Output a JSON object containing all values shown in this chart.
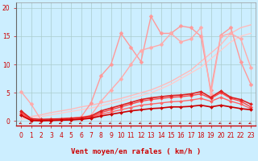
{
  "xlabel": "Vent moyen/en rafales ( km/h )",
  "xlim": [
    -0.5,
    23.5
  ],
  "ylim": [
    -0.8,
    21
  ],
  "yticks": [
    0,
    5,
    10,
    15,
    20
  ],
  "xticks": [
    0,
    1,
    2,
    3,
    4,
    5,
    6,
    7,
    8,
    9,
    10,
    11,
    12,
    13,
    14,
    15,
    16,
    17,
    18,
    19,
    20,
    21,
    22,
    23
  ],
  "background_color": "#cceeff",
  "grid_color": "#aacccc",
  "series": [
    {
      "x": [
        0,
        1,
        2,
        3,
        4,
        5,
        6,
        7,
        8,
        9,
        10,
        11,
        12,
        13,
        14,
        15,
        16,
        17,
        18,
        19,
        20,
        21,
        22,
        23
      ],
      "y": [
        0.5,
        0.8,
        1.1,
        1.5,
        1.8,
        2.1,
        2.5,
        2.8,
        3.2,
        3.6,
        4.0,
        4.5,
        5.0,
        5.5,
        6.2,
        7.0,
        8.0,
        9.0,
        10.5,
        12.0,
        13.5,
        15.5,
        16.5,
        17.0
      ],
      "color": "#ffbbbb",
      "linewidth": 1.0,
      "marker": null,
      "markersize": 0,
      "zorder": 2
    },
    {
      "x": [
        0,
        1,
        2,
        3,
        4,
        5,
        6,
        7,
        8,
        9,
        10,
        11,
        12,
        13,
        14,
        15,
        16,
        17,
        18,
        19,
        20,
        21,
        22,
        23
      ],
      "y": [
        0.3,
        0.5,
        0.8,
        1.1,
        1.4,
        1.7,
        2.0,
        2.3,
        2.7,
        3.1,
        3.5,
        4.0,
        4.5,
        5.0,
        5.7,
        6.5,
        7.5,
        8.5,
        9.5,
        11.0,
        12.5,
        14.0,
        15.0,
        15.5
      ],
      "color": "#ffcccc",
      "linewidth": 1.0,
      "marker": null,
      "markersize": 0,
      "zorder": 2
    },
    {
      "x": [
        0,
        1,
        2,
        3,
        4,
        5,
        6,
        7,
        8,
        9,
        10,
        11,
        12,
        13,
        14,
        15,
        16,
        17,
        18,
        19,
        20,
        21,
        22,
        23
      ],
      "y": [
        1.2,
        0.3,
        0.2,
        0.3,
        0.4,
        0.5,
        0.7,
        3.2,
        8.0,
        10.0,
        15.5,
        13.0,
        10.5,
        18.5,
        15.5,
        15.5,
        16.8,
        16.5,
        15.0,
        5.5,
        15.2,
        16.5,
        10.5,
        6.5
      ],
      "color": "#ff9999",
      "linewidth": 1.0,
      "marker": "D",
      "markersize": 2.5,
      "zorder": 3
    },
    {
      "x": [
        0,
        1,
        2,
        3,
        4,
        5,
        6,
        7,
        8,
        9,
        10,
        11,
        12,
        13,
        14,
        15,
        16,
        17,
        18,
        19,
        20,
        21,
        22,
        23
      ],
      "y": [
        5.2,
        3.0,
        0.2,
        0.3,
        0.4,
        0.5,
        0.7,
        1.0,
        3.5,
        5.5,
        7.5,
        10.0,
        12.5,
        13.0,
        13.5,
        15.5,
        14.0,
        14.5,
        16.5,
        4.8,
        15.0,
        15.5,
        14.5,
        9.5
      ],
      "color": "#ffaaaa",
      "linewidth": 1.0,
      "marker": "D",
      "markersize": 2.5,
      "zorder": 3
    },
    {
      "x": [
        0,
        1,
        2,
        3,
        4,
        5,
        6,
        7,
        8,
        9,
        10,
        11,
        12,
        13,
        14,
        15,
        16,
        17,
        18,
        19,
        20,
        21,
        22,
        23
      ],
      "y": [
        1.0,
        0.1,
        0.05,
        0.1,
        0.15,
        0.2,
        0.3,
        0.5,
        0.9,
        1.2,
        1.5,
        1.8,
        2.0,
        2.2,
        2.3,
        2.5,
        2.5,
        2.6,
        2.8,
        2.5,
        2.8,
        2.5,
        2.2,
        2.0
      ],
      "color": "#cc0000",
      "linewidth": 1.2,
      "marker": "D",
      "markersize": 2.0,
      "zorder": 6
    },
    {
      "x": [
        0,
        1,
        2,
        3,
        4,
        5,
        6,
        7,
        8,
        9,
        10,
        11,
        12,
        13,
        14,
        15,
        16,
        17,
        18,
        19,
        20,
        21,
        22,
        23
      ],
      "y": [
        1.5,
        0.2,
        0.1,
        0.15,
        0.2,
        0.3,
        0.4,
        0.7,
        1.5,
        2.0,
        2.5,
        3.0,
        3.5,
        3.8,
        4.0,
        4.2,
        4.3,
        4.5,
        4.8,
        4.0,
        5.0,
        4.0,
        3.5,
        2.5
      ],
      "color": "#ff4444",
      "linewidth": 1.0,
      "marker": "D",
      "markersize": 2.0,
      "zorder": 5
    },
    {
      "x": [
        0,
        1,
        2,
        3,
        4,
        5,
        6,
        7,
        8,
        9,
        10,
        11,
        12,
        13,
        14,
        15,
        16,
        17,
        18,
        19,
        20,
        21,
        22,
        23
      ],
      "y": [
        1.2,
        0.15,
        0.08,
        0.12,
        0.18,
        0.25,
        0.35,
        0.6,
        1.2,
        1.6,
        2.0,
        2.4,
        2.8,
        3.0,
        3.2,
        3.4,
        3.5,
        3.7,
        4.0,
        3.5,
        4.2,
        3.5,
        3.0,
        2.2
      ],
      "color": "#ff6666",
      "linewidth": 1.0,
      "marker": "D",
      "markersize": 2.0,
      "zorder": 4
    },
    {
      "x": [
        0,
        1,
        2,
        3,
        4,
        5,
        6,
        7,
        8,
        9,
        10,
        11,
        12,
        13,
        14,
        15,
        16,
        17,
        18,
        19,
        20,
        21,
        22,
        23
      ],
      "y": [
        1.8,
        0.4,
        0.3,
        0.35,
        0.4,
        0.5,
        0.6,
        0.9,
        1.8,
        2.3,
        2.8,
        3.3,
        3.8,
        4.1,
        4.3,
        4.5,
        4.6,
        4.8,
        5.2,
        4.2,
        5.3,
        4.2,
        3.8,
        3.0
      ],
      "color": "#dd2222",
      "linewidth": 1.2,
      "marker": "D",
      "markersize": 2.0,
      "zorder": 5
    }
  ],
  "arrow_color": "#cc0000",
  "label_color": "#cc0000",
  "tick_label_color": "#cc0000",
  "xlabel_fontsize": 6.5,
  "tick_fontsize": 5.5
}
